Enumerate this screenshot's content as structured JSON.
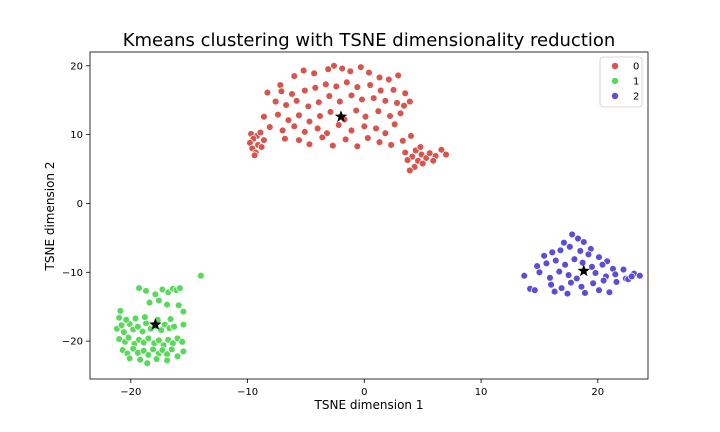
{
  "chart_data": {
    "type": "scatter",
    "title": "Kmeans clustering with TSNE dimensionality reduction",
    "xlabel": "TSNE dimension 1",
    "ylabel": "TSNE dimension 2",
    "xlim": [
      -23.5,
      24.3
    ],
    "ylim": [
      -25.5,
      22.0
    ],
    "xticks": [
      -20,
      -10,
      0,
      10,
      20
    ],
    "yticks": [
      -20,
      -10,
      0,
      10,
      20
    ],
    "grid": false,
    "legend_position": "top-right",
    "series": [
      {
        "name": "0",
        "color": "#d9544d",
        "points": [
          [
            -7.2,
            17.2
          ],
          [
            -6.0,
            18.5
          ],
          [
            -5.2,
            19.3
          ],
          [
            -4.3,
            18.9
          ],
          [
            -3.1,
            19.5
          ],
          [
            -2.6,
            20.0
          ],
          [
            -1.9,
            19.6
          ],
          [
            -1.2,
            19.2
          ],
          [
            -0.3,
            19.8
          ],
          [
            0.4,
            19.0
          ],
          [
            1.3,
            18.3
          ],
          [
            2.1,
            18.0
          ],
          [
            2.9,
            18.6
          ],
          [
            -8.3,
            16.1
          ],
          [
            -7.1,
            16.3
          ],
          [
            -6.2,
            15.9
          ],
          [
            -5.1,
            16.4
          ],
          [
            -4.2,
            16.8
          ],
          [
            -3.3,
            17.3
          ],
          [
            -2.4,
            17.0
          ],
          [
            -1.5,
            17.6
          ],
          [
            -0.6,
            16.9
          ],
          [
            0.5,
            17.2
          ],
          [
            1.4,
            16.4
          ],
          [
            2.5,
            16.5
          ],
          [
            3.5,
            16.0
          ],
          [
            -7.6,
            14.8
          ],
          [
            -6.7,
            14.3
          ],
          [
            -5.8,
            14.9
          ],
          [
            -4.8,
            14.1
          ],
          [
            -3.9,
            14.7
          ],
          [
            -3.0,
            15.6
          ],
          [
            -2.1,
            14.8
          ],
          [
            -1.1,
            15.7
          ],
          [
            -0.2,
            15.1
          ],
          [
            0.8,
            15.3
          ],
          [
            1.8,
            14.9
          ],
          [
            2.8,
            14.6
          ],
          [
            3.4,
            14.2
          ],
          [
            3.9,
            14.8
          ],
          [
            -8.6,
            12.6
          ],
          [
            -7.4,
            12.9
          ],
          [
            -6.5,
            12.1
          ],
          [
            -5.6,
            12.8
          ],
          [
            -4.7,
            11.9
          ],
          [
            -3.8,
            12.7
          ],
          [
            -2.9,
            13.3
          ],
          [
            -1.7,
            12.2
          ],
          [
            -0.7,
            13.5
          ],
          [
            0.1,
            12.6
          ],
          [
            1.2,
            13.4
          ],
          [
            2.2,
            12.7
          ],
          [
            3.1,
            13.1
          ],
          [
            -8.1,
            11.1
          ],
          [
            -7.0,
            10.6
          ],
          [
            -6.0,
            11.2
          ],
          [
            -5.1,
            10.4
          ],
          [
            -4.0,
            10.9
          ],
          [
            -3.2,
            10.2
          ],
          [
            -2.2,
            11.4
          ],
          [
            -1.1,
            10.6
          ],
          [
            0.0,
            11.2
          ],
          [
            1.0,
            10.9
          ],
          [
            1.8,
            10.2
          ],
          [
            2.6,
            11.5
          ],
          [
            -6.8,
            9.4
          ],
          [
            -5.6,
            9.2
          ],
          [
            -4.7,
            8.6
          ],
          [
            -3.6,
            9.6
          ],
          [
            -2.7,
            8.4
          ],
          [
            -1.6,
            9.3
          ],
          [
            -0.6,
            8.3
          ],
          [
            0.3,
            9.5
          ],
          [
            1.3,
            8.9
          ],
          [
            2.3,
            8.5
          ],
          [
            3.3,
            9.1
          ],
          [
            4.0,
            9.8
          ],
          [
            -9.7,
            10.1
          ],
          [
            -9.2,
            9.8
          ],
          [
            -9.5,
            9.4
          ],
          [
            -8.9,
            10.3
          ],
          [
            -9.8,
            8.8
          ],
          [
            -9.1,
            8.5
          ],
          [
            -9.6,
            8.0
          ],
          [
            -9.3,
            7.4
          ],
          [
            -8.8,
            8.2
          ],
          [
            -9.4,
            7.0
          ],
          [
            -8.6,
            9.2
          ],
          [
            3.5,
            7.4
          ],
          [
            4.1,
            6.8
          ],
          [
            4.4,
            7.7
          ],
          [
            4.9,
            7.1
          ],
          [
            5.3,
            6.6
          ],
          [
            4.6,
            6.2
          ],
          [
            5.0,
            5.8
          ],
          [
            4.3,
            5.3
          ],
          [
            3.9,
            4.8
          ],
          [
            5.6,
            7.3
          ],
          [
            6.1,
            6.9
          ],
          [
            6.6,
            7.8
          ],
          [
            7.0,
            7.1
          ],
          [
            5.9,
            6.2
          ],
          [
            3.7,
            6.3
          ],
          [
            4.8,
            8.2
          ]
        ],
        "centroid": [
          -2.0,
          12.6
        ]
      },
      {
        "name": "1",
        "color": "#59d95b",
        "points": [
          [
            -21.2,
            -18.2
          ],
          [
            -20.8,
            -17.7
          ],
          [
            -20.6,
            -18.7
          ],
          [
            -20.1,
            -17.5
          ],
          [
            -19.8,
            -18.3
          ],
          [
            -19.4,
            -17.9
          ],
          [
            -19.0,
            -18.6
          ],
          [
            -18.7,
            -17.4
          ],
          [
            -18.3,
            -18.2
          ],
          [
            -17.9,
            -17.8
          ],
          [
            -17.4,
            -18.4
          ],
          [
            -17.1,
            -17.6
          ],
          [
            -16.7,
            -18.1
          ],
          [
            -16.3,
            -17.9
          ],
          [
            -21.0,
            -19.7
          ],
          [
            -20.5,
            -20.1
          ],
          [
            -20.2,
            -19.5
          ],
          [
            -19.7,
            -20.4
          ],
          [
            -19.3,
            -19.8
          ],
          [
            -18.9,
            -20.2
          ],
          [
            -18.5,
            -19.6
          ],
          [
            -18.0,
            -20.3
          ],
          [
            -17.6,
            -19.9
          ],
          [
            -17.2,
            -20.6
          ],
          [
            -16.8,
            -19.8
          ],
          [
            -16.4,
            -20.3
          ],
          [
            -16.0,
            -19.6
          ],
          [
            -15.6,
            -20.1
          ],
          [
            -20.7,
            -21.3
          ],
          [
            -20.3,
            -21.8
          ],
          [
            -19.8,
            -21.1
          ],
          [
            -19.4,
            -21.7
          ],
          [
            -18.9,
            -21.4
          ],
          [
            -18.5,
            -22.0
          ],
          [
            -18.1,
            -21.2
          ],
          [
            -17.6,
            -21.8
          ],
          [
            -17.3,
            -21.3
          ],
          [
            -16.9,
            -21.9
          ],
          [
            -16.5,
            -21.2
          ],
          [
            -16.0,
            -22.2
          ],
          [
            -15.5,
            -21.5
          ],
          [
            -19.2,
            -22.7
          ],
          [
            -18.6,
            -23.2
          ],
          [
            -17.8,
            -22.6
          ],
          [
            -16.9,
            -22.8
          ],
          [
            -20.1,
            -22.5
          ],
          [
            -21.0,
            -16.6
          ],
          [
            -20.4,
            -16.9
          ],
          [
            -19.6,
            -16.7
          ],
          [
            -18.8,
            -16.5
          ],
          [
            -17.7,
            -16.9
          ],
          [
            -16.6,
            -16.8
          ],
          [
            -15.5,
            -17.6
          ],
          [
            -20.9,
            -15.6
          ],
          [
            -18.4,
            -14.4
          ],
          [
            -17.9,
            -13.2
          ],
          [
            -17.3,
            -12.5
          ],
          [
            -16.8,
            -12.9
          ],
          [
            -16.4,
            -12.4
          ],
          [
            -16.1,
            -12.6
          ],
          [
            -15.8,
            -12.3
          ],
          [
            -17.6,
            -14.1
          ],
          [
            -16.9,
            -14.7
          ],
          [
            -15.9,
            -14.8
          ],
          [
            -15.5,
            -15.7
          ],
          [
            -18.7,
            -12.7
          ],
          [
            -19.3,
            -12.3
          ],
          [
            -14.0,
            -10.5
          ]
        ],
        "centroid": [
          -17.9,
          -17.6
        ]
      },
      {
        "name": "2",
        "color": "#5a4dd6",
        "points": [
          [
            17.1,
            -5.7
          ],
          [
            17.8,
            -4.5
          ],
          [
            18.3,
            -5.1
          ],
          [
            18.8,
            -5.6
          ],
          [
            19.4,
            -6.6
          ],
          [
            15.4,
            -7.6
          ],
          [
            16.1,
            -7.1
          ],
          [
            16.8,
            -6.8
          ],
          [
            17.6,
            -6.3
          ],
          [
            18.5,
            -6.9
          ],
          [
            19.2,
            -7.4
          ],
          [
            20.1,
            -7.8
          ],
          [
            20.8,
            -8.4
          ],
          [
            14.8,
            -9.1
          ],
          [
            15.6,
            -8.7
          ],
          [
            16.4,
            -8.3
          ],
          [
            17.2,
            -8.9
          ],
          [
            18.0,
            -8.1
          ],
          [
            18.7,
            -8.6
          ],
          [
            19.5,
            -9.2
          ],
          [
            20.4,
            -8.9
          ],
          [
            21.3,
            -9.5
          ],
          [
            22.2,
            -9.6
          ],
          [
            13.7,
            -10.5
          ],
          [
            15.0,
            -10.0
          ],
          [
            15.9,
            -10.8
          ],
          [
            16.7,
            -9.9
          ],
          [
            17.5,
            -10.4
          ],
          [
            18.2,
            -10.9
          ],
          [
            19.8,
            -10.1
          ],
          [
            20.7,
            -10.6
          ],
          [
            21.5,
            -10.3
          ],
          [
            22.4,
            -10.9
          ],
          [
            23.1,
            -10.2
          ],
          [
            23.6,
            -10.5
          ],
          [
            14.2,
            -12.4
          ],
          [
            16.0,
            -11.8
          ],
          [
            16.9,
            -12.3
          ],
          [
            17.7,
            -11.5
          ],
          [
            18.6,
            -12.1
          ],
          [
            19.6,
            -11.6
          ],
          [
            20.5,
            -11.2
          ],
          [
            21.6,
            -11.4
          ],
          [
            22.6,
            -11.0
          ],
          [
            14.6,
            -12.6
          ],
          [
            16.3,
            -12.8
          ],
          [
            17.4,
            -13.1
          ],
          [
            18.9,
            -13.0
          ],
          [
            20.1,
            -12.6
          ],
          [
            21.0,
            -12.9
          ],
          [
            22.9,
            -10.6
          ]
        ],
        "centroid": [
          18.8,
          -9.8
        ]
      }
    ]
  }
}
